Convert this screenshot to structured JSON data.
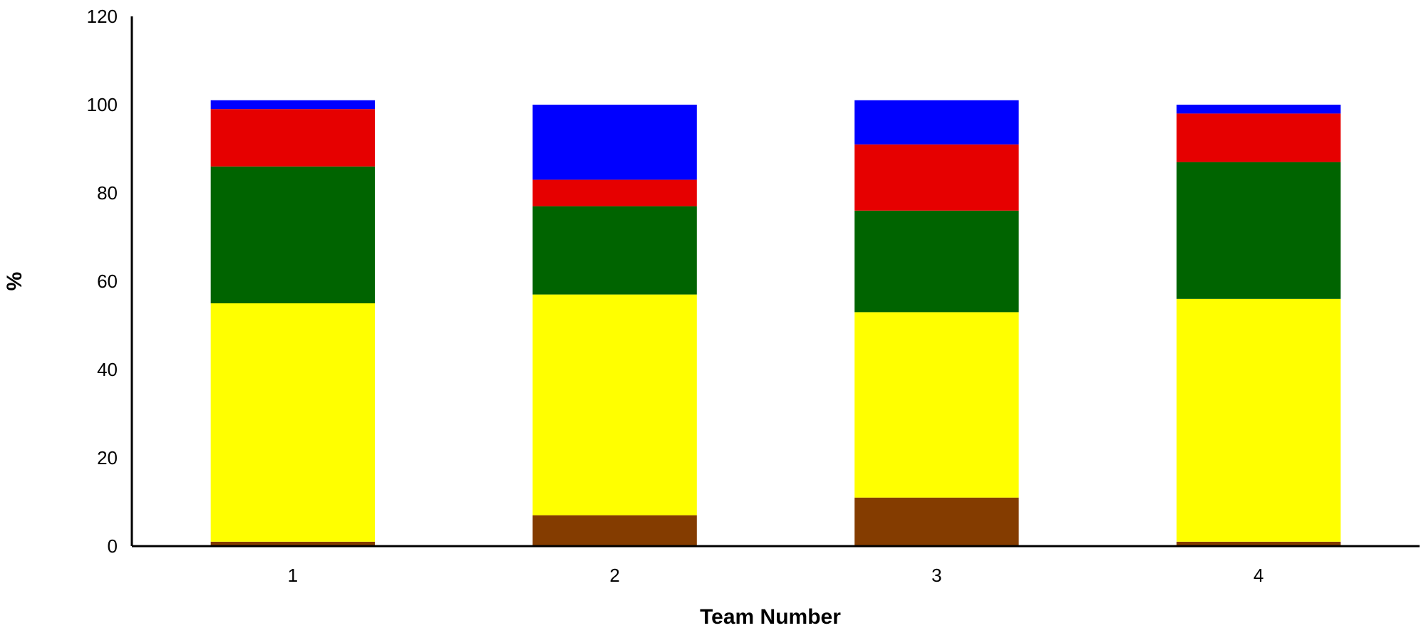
{
  "chart_data": {
    "type": "bar",
    "stacked": true,
    "title": "",
    "xlabel": "Team Number",
    "ylabel": "%",
    "ylim": [
      0,
      120
    ],
    "yticks": [
      0,
      20,
      40,
      60,
      80,
      100,
      120
    ],
    "categories": [
      "1",
      "2",
      "3",
      "4"
    ],
    "grid": false,
    "legend": "none",
    "series": [
      {
        "color": "#843C00",
        "values": [
          1,
          7,
          11,
          1
        ]
      },
      {
        "color": "#FFFF00",
        "values": [
          54,
          50,
          42,
          55
        ]
      },
      {
        "color": "#006400",
        "values": [
          31,
          20,
          23,
          31
        ]
      },
      {
        "color": "#E60000",
        "values": [
          13,
          6,
          15,
          11
        ]
      },
      {
        "color": "#0000FF",
        "values": [
          2,
          17,
          10,
          2
        ]
      }
    ]
  }
}
